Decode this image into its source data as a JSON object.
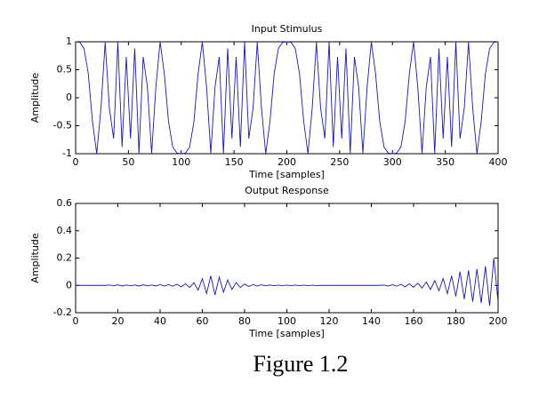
{
  "chart_data": [
    {
      "type": "line",
      "title": "Input Stimulus",
      "x_label": "Time [samples]",
      "y_label": "Amplitude",
      "color": "#1a1aa6",
      "xlim": [
        0,
        400
      ],
      "ylim": [
        -1,
        1
      ],
      "xticks": [
        0,
        50,
        100,
        150,
        200,
        250,
        300,
        350,
        400
      ],
      "yticks": [
        -1,
        -0.5,
        0,
        0.5,
        1
      ],
      "x": [
        0,
        4,
        8,
        12,
        16,
        20,
        24,
        28,
        32,
        36,
        40,
        44,
        48,
        52,
        56,
        60,
        64,
        68,
        72,
        76,
        80,
        84,
        88,
        92,
        96,
        100,
        104,
        108,
        112,
        116,
        120,
        124,
        128,
        132,
        136,
        140,
        144,
        148,
        152,
        156,
        160,
        164,
        168,
        172,
        176,
        180,
        184,
        188,
        192,
        196,
        200,
        204,
        208,
        212,
        216,
        220,
        224,
        228,
        232,
        236,
        240,
        244,
        248,
        252,
        256,
        260,
        264,
        268,
        272,
        276,
        280,
        284,
        288,
        292,
        296,
        300,
        304,
        308,
        312,
        316,
        320,
        324,
        328,
        332,
        336,
        340,
        344,
        348,
        352,
        356,
        360,
        364,
        368,
        372,
        376,
        380,
        384,
        388,
        392,
        396,
        400
      ],
      "values": [
        1,
        0.99,
        0.88,
        0.43,
        -0.43,
        -1,
        -0.19,
        0.99,
        -0.19,
        -0.73,
        1,
        -0.88,
        0.73,
        -0.73,
        0.88,
        -1,
        0.73,
        0.19,
        -0.99,
        0.19,
        1,
        0.43,
        -0.43,
        -0.88,
        -0.99,
        -1,
        -0.99,
        -0.88,
        -0.43,
        0.43,
        1,
        0.19,
        -0.99,
        0.19,
        0.73,
        -1,
        0.88,
        -0.73,
        0.73,
        -0.88,
        1,
        -0.73,
        -0.19,
        0.99,
        -0.19,
        -1,
        -0.43,
        0.43,
        0.88,
        0.99,
        1,
        0.99,
        0.88,
        0.43,
        -0.43,
        -1,
        -0.19,
        0.99,
        -0.19,
        -0.73,
        1,
        -0.88,
        0.73,
        -0.73,
        0.88,
        -1,
        0.73,
        0.19,
        -0.99,
        0.19,
        1,
        0.43,
        -0.43,
        -0.88,
        -0.99,
        -1,
        -0.99,
        -0.88,
        -0.43,
        0.43,
        1,
        0.19,
        -0.99,
        0.19,
        0.73,
        -1,
        0.88,
        -0.73,
        0.73,
        -0.88,
        1,
        -0.73,
        -0.19,
        0.99,
        -0.19,
        -1,
        -0.43,
        0.43,
        0.88,
        0.99,
        1
      ]
    },
    {
      "type": "line",
      "title": "Output Response",
      "x_label": "Time [samples]",
      "y_label": "Amplitude",
      "color": "#1a1aa6",
      "xlim": [
        0,
        200
      ],
      "ylim": [
        -0.2,
        0.6
      ],
      "xticks": [
        0,
        20,
        40,
        60,
        80,
        100,
        120,
        140,
        160,
        180,
        200
      ],
      "yticks": [
        -0.2,
        0,
        0.2,
        0.4,
        0.6
      ],
      "x": [
        0,
        2,
        4,
        6,
        8,
        10,
        12,
        14,
        16,
        18,
        20,
        22,
        24,
        26,
        28,
        30,
        32,
        34,
        36,
        38,
        40,
        42,
        44,
        46,
        48,
        50,
        52,
        54,
        56,
        58,
        60,
        62,
        64,
        66,
        68,
        70,
        72,
        74,
        76,
        78,
        80,
        82,
        84,
        86,
        88,
        90,
        92,
        94,
        96,
        98,
        100,
        102,
        104,
        106,
        108,
        110,
        112,
        114,
        116,
        118,
        120,
        122,
        124,
        126,
        128,
        130,
        132,
        134,
        136,
        138,
        140,
        142,
        144,
        146,
        148,
        150,
        152,
        154,
        156,
        158,
        160,
        162,
        164,
        166,
        168,
        170,
        172,
        174,
        176,
        178,
        180,
        182,
        184,
        186,
        188,
        190,
        192,
        194,
        196,
        198,
        200
      ],
      "values": [
        0,
        0,
        0,
        0,
        0,
        0,
        0,
        0,
        0.003,
        -0.003,
        0.004,
        -0.004,
        0.003,
        -0.003,
        0.003,
        -0.004,
        0.004,
        -0.003,
        0.003,
        -0.004,
        0.005,
        -0.005,
        0.006,
        -0.006,
        0.008,
        -0.01,
        0.012,
        -0.015,
        0.02,
        -0.035,
        0.05,
        -0.06,
        0.07,
        -0.07,
        0.06,
        -0.05,
        0.04,
        -0.03,
        0.02,
        -0.015,
        0.01,
        -0.008,
        0.006,
        -0.005,
        0.004,
        -0.003,
        0.003,
        -0.003,
        0.002,
        -0.002,
        0.002,
        -0.002,
        0.002,
        -0.002,
        0.002,
        -0.002,
        0.001,
        -0.001,
        0,
        0,
        0,
        0,
        0,
        0,
        0,
        0,
        0,
        0,
        0,
        0,
        0,
        0,
        0,
        0.002,
        -0.004,
        0.005,
        -0.006,
        0.008,
        -0.01,
        0.012,
        -0.014,
        0.016,
        -0.02,
        0.025,
        -0.03,
        0.035,
        -0.04,
        0.05,
        -0.06,
        0.07,
        -0.08,
        0.1,
        -0.1,
        0.11,
        -0.12,
        0.12,
        -0.13,
        0.14,
        -0.15,
        0.2,
        -0.12
      ]
    }
  ],
  "caption": "Figure 1.2"
}
